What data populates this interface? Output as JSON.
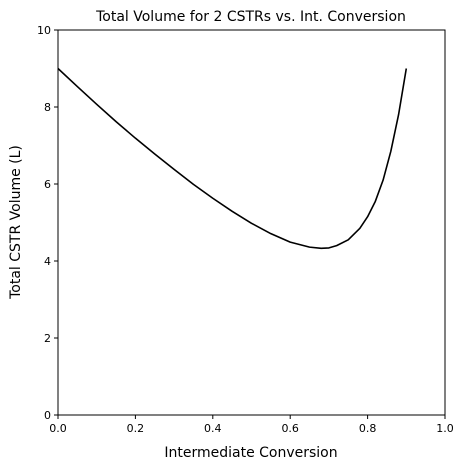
{
  "chart_data": {
    "type": "line",
    "title": "Total Volume for 2 CSTRs vs. Int. Conversion",
    "xlabel": "Intermediate Conversion",
    "ylabel": "Total CSTR Volume (L)",
    "xlim": [
      0,
      1.0
    ],
    "ylim": [
      0,
      10
    ],
    "xticks": [
      "0.0",
      "0.2",
      "0.4",
      "0.6",
      "0.8",
      "1.0"
    ],
    "yticks": [
      "0",
      "2",
      "4",
      "6",
      "8",
      "10"
    ],
    "grid": false,
    "legend": "none",
    "series": [
      {
        "color": "#000000",
        "x": [
          0.0,
          0.05,
          0.1,
          0.15,
          0.2,
          0.25,
          0.3,
          0.35,
          0.4,
          0.45,
          0.5,
          0.55,
          0.6,
          0.65,
          0.68,
          0.7,
          0.72,
          0.75,
          0.78,
          0.8,
          0.82,
          0.84,
          0.86,
          0.88,
          0.9
        ],
        "y": [
          9.0,
          8.53,
          8.07,
          7.62,
          7.19,
          6.78,
          6.38,
          5.99,
          5.63,
          5.29,
          4.98,
          4.71,
          4.49,
          4.36,
          4.33,
          4.34,
          4.4,
          4.55,
          4.85,
          5.15,
          5.55,
          6.1,
          6.85,
          7.8,
          9.0
        ]
      }
    ]
  }
}
